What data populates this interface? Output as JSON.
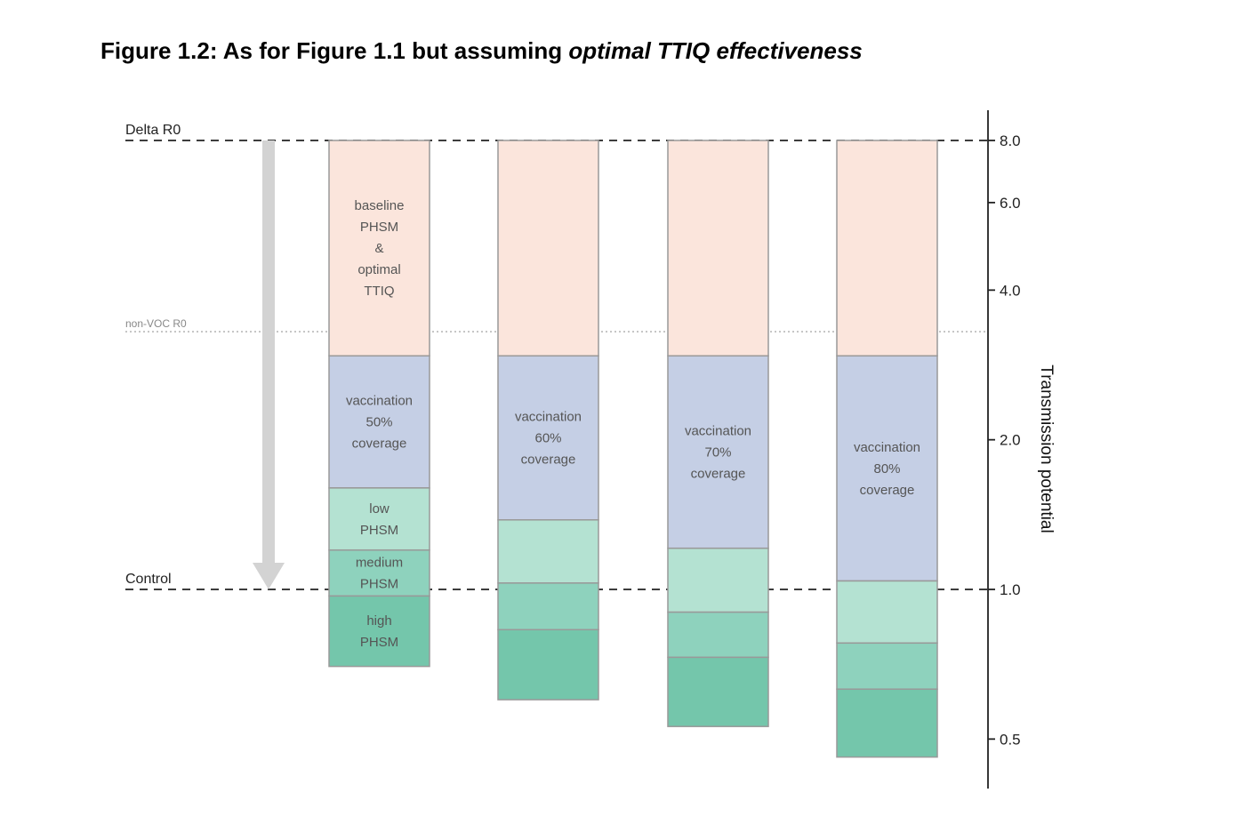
{
  "title": {
    "prefix": "Figure 1.2: As for Figure 1.1 but assuming ",
    "emphasis": "optimal TTIQ effectiveness"
  },
  "chart_data": {
    "type": "bar",
    "subtype": "stacked-log-waterfall",
    "y_scale": "log",
    "ylim": [
      0.4,
      8.5
    ],
    "ylabel": "Transmission potential",
    "y_ticks": [
      8.0,
      6.0,
      4.0,
      2.0,
      1.0,
      0.5
    ],
    "y_tick_labels": [
      "8.0",
      "6.0",
      "4.0",
      "2.0",
      "1.0",
      "0.5"
    ],
    "reference_lines": [
      {
        "name": "Delta R0",
        "value": 8.0,
        "style": "dashed"
      },
      {
        "name": "non-VOC R0",
        "value": 3.3,
        "style": "dotted"
      },
      {
        "name": "Control",
        "value": 1.0,
        "style": "dashed"
      }
    ],
    "arrow": {
      "from": 8.0,
      "to": 1.0
    },
    "colors": {
      "baseline": "#fbe5dc",
      "vaccination": "#c5cfe5",
      "low": "#b4e2d2",
      "medium": "#8ed2bd",
      "high": "#74c6ab",
      "edge": "#999999"
    },
    "columns": [
      {
        "coverage": "50%",
        "segments": [
          {
            "key": "baseline",
            "top": 8.0,
            "bottom": 2.95,
            "lines": [
              "baseline",
              "PHSM",
              "&",
              "optimal",
              "TTIQ"
            ]
          },
          {
            "key": "vaccination",
            "top": 2.95,
            "bottom": 1.6,
            "lines": [
              "vaccination",
              "50%",
              "coverage"
            ]
          },
          {
            "key": "low",
            "top": 1.6,
            "bottom": 1.2,
            "lines": [
              "low",
              "PHSM"
            ]
          },
          {
            "key": "medium",
            "top": 1.2,
            "bottom": 0.97,
            "lines": [
              "medium",
              "PHSM"
            ]
          },
          {
            "key": "high",
            "top": 0.97,
            "bottom": 0.7,
            "lines": [
              "high",
              "PHSM"
            ]
          }
        ]
      },
      {
        "coverage": "60%",
        "segments": [
          {
            "key": "baseline",
            "top": 8.0,
            "bottom": 2.95,
            "lines": []
          },
          {
            "key": "vaccination",
            "top": 2.95,
            "bottom": 1.38,
            "lines": [
              "vaccination",
              "60%",
              "coverage"
            ]
          },
          {
            "key": "low",
            "top": 1.38,
            "bottom": 1.03,
            "lines": []
          },
          {
            "key": "medium",
            "top": 1.03,
            "bottom": 0.83,
            "lines": []
          },
          {
            "key": "high",
            "top": 0.83,
            "bottom": 0.6,
            "lines": []
          }
        ]
      },
      {
        "coverage": "70%",
        "segments": [
          {
            "key": "baseline",
            "top": 8.0,
            "bottom": 2.95,
            "lines": []
          },
          {
            "key": "vaccination",
            "top": 2.95,
            "bottom": 1.21,
            "lines": [
              "vaccination",
              "70%",
              "coverage"
            ]
          },
          {
            "key": "low",
            "top": 1.21,
            "bottom": 0.9,
            "lines": []
          },
          {
            "key": "medium",
            "top": 0.9,
            "bottom": 0.73,
            "lines": []
          },
          {
            "key": "high",
            "top": 0.73,
            "bottom": 0.53,
            "lines": []
          }
        ]
      },
      {
        "coverage": "80%",
        "segments": [
          {
            "key": "baseline",
            "top": 8.0,
            "bottom": 2.95,
            "lines": []
          },
          {
            "key": "vaccination",
            "top": 2.95,
            "bottom": 1.04,
            "lines": [
              "vaccination",
              "80%",
              "coverage"
            ]
          },
          {
            "key": "low",
            "top": 1.04,
            "bottom": 0.78,
            "lines": []
          },
          {
            "key": "medium",
            "top": 0.78,
            "bottom": 0.63,
            "lines": []
          },
          {
            "key": "high",
            "top": 0.63,
            "bottom": 0.46,
            "lines": []
          }
        ]
      }
    ]
  }
}
